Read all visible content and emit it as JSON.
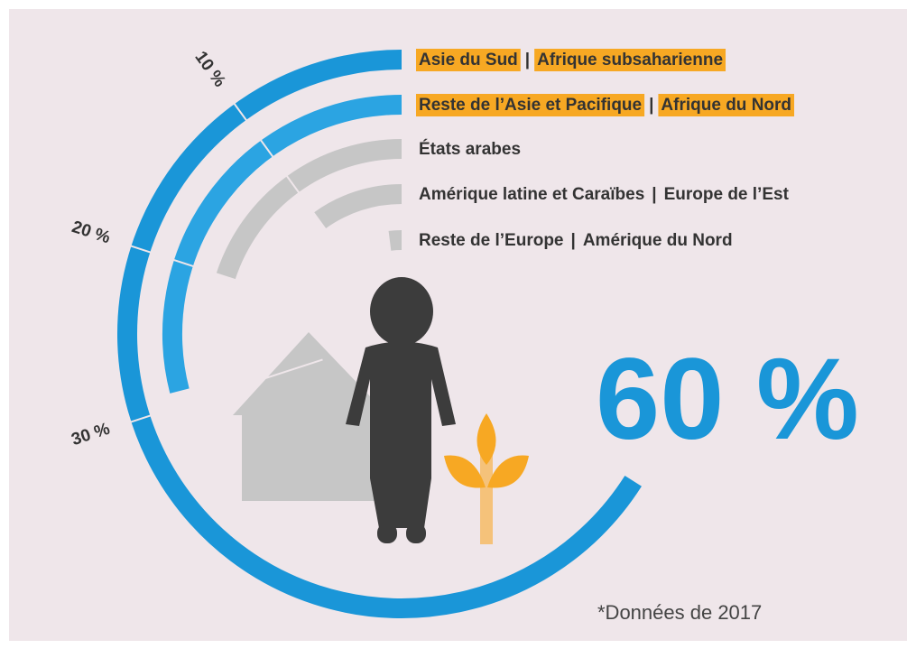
{
  "chart_data": {
    "type": "radial_bar",
    "separator": "|",
    "big_number": "60 %",
    "note": "*Données de 2017",
    "series": [
      {
        "regions": [
          "Asie du Sud",
          "Afrique subsaharienne"
        ],
        "highlight": true,
        "color": "#1a96d8",
        "value": 66
      },
      {
        "regions": [
          "Reste de l’Asie et Pacifique",
          "Afrique du Nord"
        ],
        "highlight": true,
        "color": "#2ba4e2",
        "value": 29
      },
      {
        "regions": [
          "États arabes"
        ],
        "highlight": false,
        "color": "#c6c6c6",
        "value": 20
      },
      {
        "regions": [
          "Amérique latine et Caraïbes",
          "Europe de l’Est"
        ],
        "highlight": false,
        "color": "#c6c6c6",
        "value": 10
      },
      {
        "regions": [
          "Reste de l’Europe",
          "Amérique du Nord"
        ],
        "highlight": false,
        "color": "#c6c6c6",
        "value": 2
      }
    ],
    "ticks": [
      {
        "value": 10,
        "label": "10 %"
      },
      {
        "value": 20,
        "label": "20 %"
      },
      {
        "value": 30,
        "label": "30 %"
      }
    ],
    "full_circle": 100,
    "highlight_color": "#f7a823"
  }
}
